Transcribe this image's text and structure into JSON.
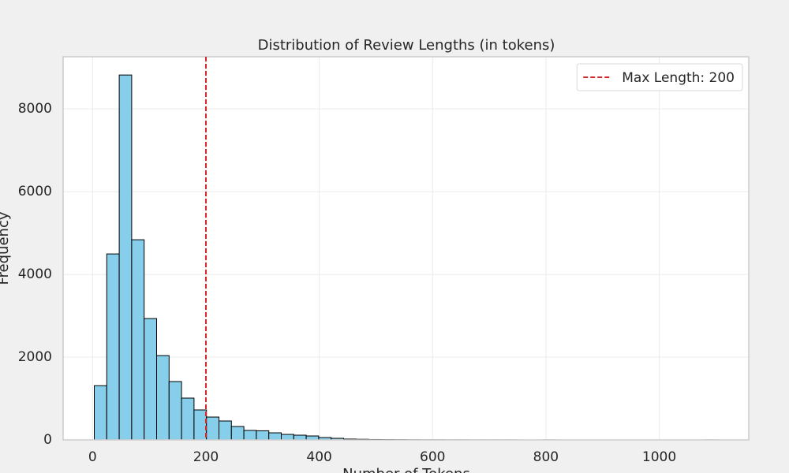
{
  "chart_data": {
    "type": "histogram",
    "title": "Distribution of Review Lengths (in tokens)",
    "x_label": "Number of Tokens",
    "y_label": "Frequency",
    "bins": [
      3,
      25,
      47,
      69,
      91,
      113,
      135,
      157,
      179,
      201,
      223,
      245,
      267,
      289,
      311,
      333,
      355,
      377,
      399,
      421,
      443,
      465,
      487,
      509,
      531,
      553,
      575,
      597,
      619,
      641,
      663,
      685,
      707,
      729,
      751,
      773,
      795,
      817,
      839,
      861,
      883,
      905,
      927,
      949,
      971,
      993,
      1015,
      1037,
      1059,
      1081,
      1103
    ],
    "counts": [
      1310,
      4495,
      8820,
      4838,
      2933,
      2038,
      1410,
      1010,
      724,
      552,
      457,
      324,
      229,
      220,
      171,
      133,
      114,
      95,
      57,
      38,
      20,
      15,
      10,
      8,
      6,
      4,
      3,
      3,
      2,
      2,
      1,
      1,
      1,
      1,
      0,
      0,
      1,
      0,
      0,
      0,
      0,
      0,
      0,
      0,
      0,
      0,
      0,
      0,
      0,
      1
    ],
    "color": "#87ceeb",
    "edgecolor": "#000000",
    "reference_line": {
      "value": 200,
      "label": "Max Length: 200",
      "color": "#d62728"
    },
    "legend": "upper right",
    "xlim": [
      -52,
      1158
    ],
    "xticks": [
      0,
      200,
      400,
      600,
      800,
      1000
    ],
    "ylim": [
      0,
      9261
    ],
    "yticks": [
      0,
      2000,
      4000,
      6000,
      8000
    ],
    "grid": true
  }
}
